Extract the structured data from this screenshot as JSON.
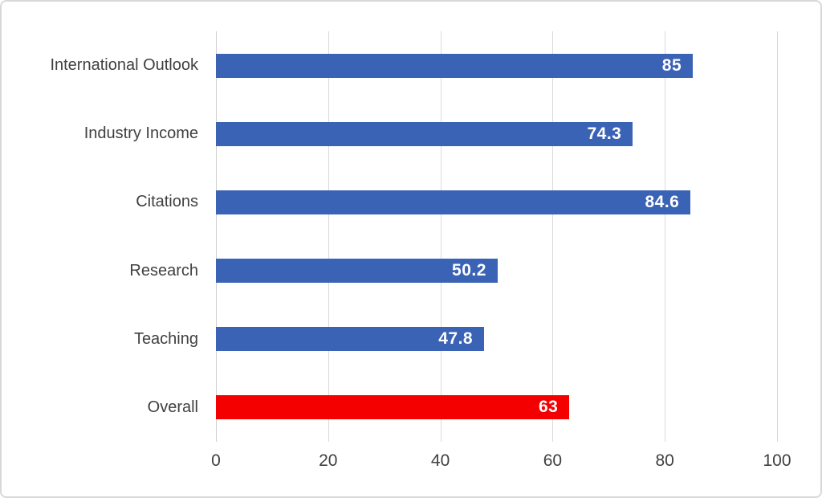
{
  "figure": {
    "background": "#ffffff",
    "frame_border_color": "#d8d8d8"
  },
  "chart_data": {
    "type": "bar",
    "orientation": "horizontal",
    "categories": [
      "International Outlook",
      "Industry Income",
      "Citations",
      "Research",
      "Teaching",
      "Overall"
    ],
    "values": [
      85,
      74.3,
      84.6,
      50.2,
      47.8,
      63
    ],
    "value_labels": [
      "85",
      "74.3",
      "84.6",
      "50.2",
      "47.8",
      "63"
    ],
    "bar_colors": [
      "#3a62b5",
      "#3a62b5",
      "#3a62b5",
      "#3a62b5",
      "#3a62b5",
      "#f40000"
    ],
    "accent_blue": "#3a62b5",
    "accent_red": "#f40000",
    "xlim": [
      0,
      100
    ],
    "x_ticks": [
      0,
      20,
      40,
      60,
      80,
      100
    ],
    "x_tick_labels": [
      "0",
      "20",
      "40",
      "60",
      "80",
      "100"
    ],
    "grid": true,
    "gridline_color": "#d9d9d9",
    "category_label_color": "#404040",
    "tick_label_color": "#404040",
    "value_label_color": "#ffffff",
    "legend": "none"
  }
}
